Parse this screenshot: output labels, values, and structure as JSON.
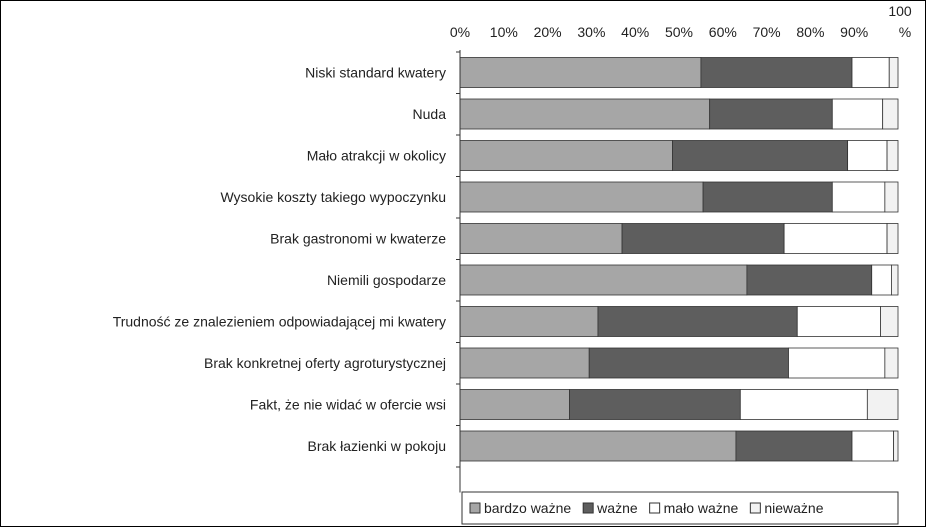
{
  "chart_data": {
    "type": "bar",
    "orientation": "horizontal",
    "stacked": "percent",
    "xlim": [
      0,
      100
    ],
    "x_tick_labels": [
      "0%",
      "10%",
      "20%",
      "30%",
      "40%",
      "50%",
      "60%",
      "70%",
      "80%",
      "90%",
      "100",
      "%"
    ],
    "categories": [
      "Niski standard kwatery",
      "Nuda",
      "Mało atrakcji w okolicy",
      "Wysokie koszty takiego wypoczynku",
      "Brak gastronomi w kwaterze",
      "Niemili gospodarze",
      "Trudność ze znalezieniem odpowiadającej mi kwatery",
      "Brak konkretnej oferty agroturystycznej",
      "Fakt, że nie widać w ofercie wsi",
      "Brak łazienki w pokoju"
    ],
    "series": [
      {
        "name": "bardzo ważne",
        "color": "#a6a6a6",
        "values": [
          55,
          57,
          48.5,
          55.5,
          37,
          65.5,
          31.5,
          29.5,
          25,
          63
        ]
      },
      {
        "name": "ważne",
        "color": "#5e5e5e",
        "values": [
          34.5,
          28,
          40,
          29.5,
          37,
          28.5,
          45.5,
          45.5,
          39,
          26.5
        ]
      },
      {
        "name": "mało ważne",
        "color": "#ffffff",
        "values": [
          8.5,
          11.5,
          9,
          12,
          23.5,
          4.5,
          19,
          22,
          29,
          9.5
        ]
      },
      {
        "name": "nieważne",
        "color": "#f2f2f2",
        "values": [
          2,
          3.5,
          2.5,
          3,
          2.5,
          1.5,
          4,
          3,
          7,
          1
        ]
      }
    ],
    "legend_position": "bottom",
    "grid": false
  }
}
